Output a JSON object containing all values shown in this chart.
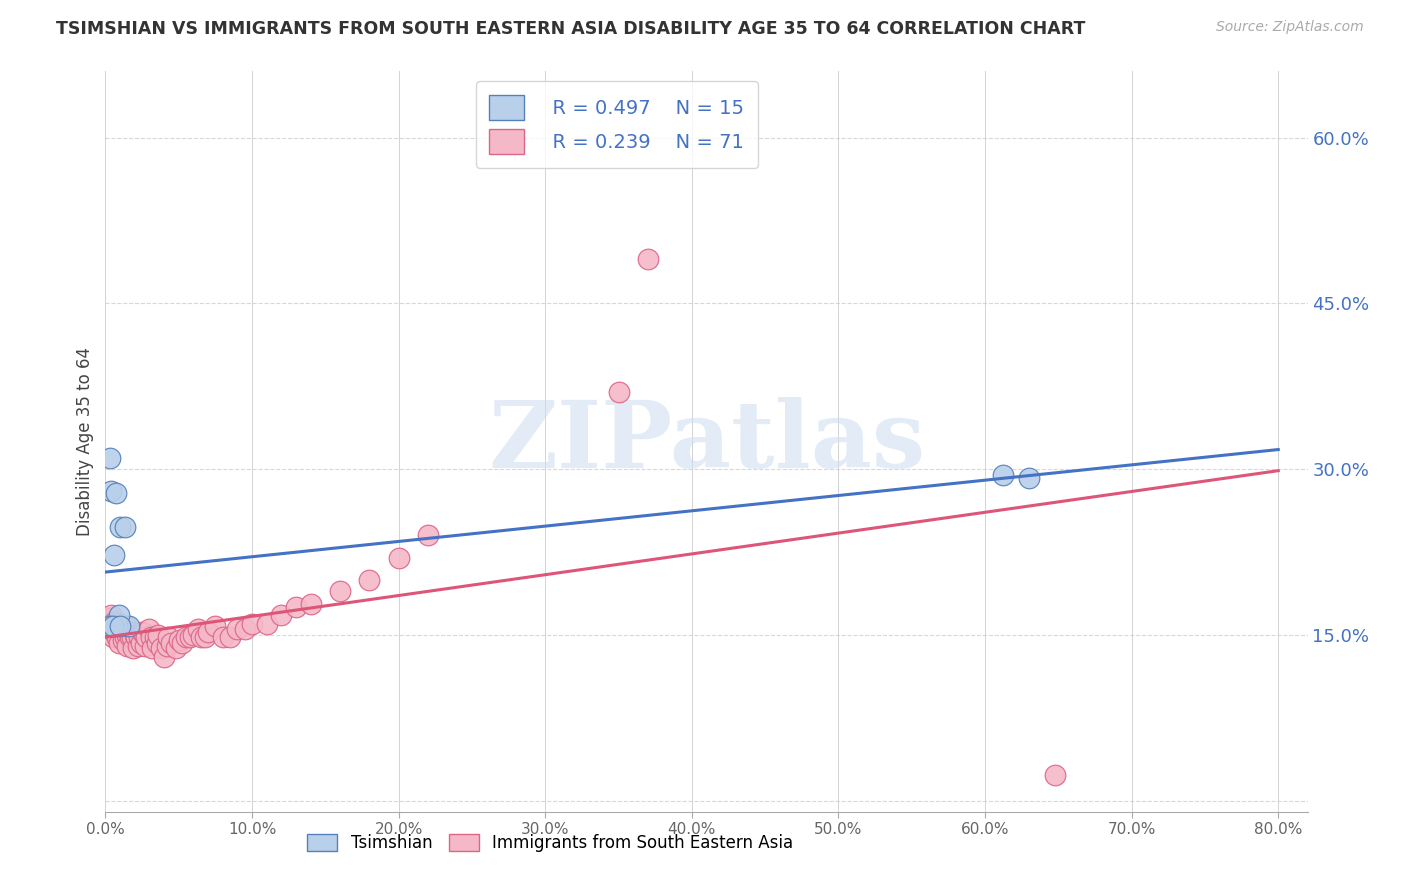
{
  "title": "TSIMSHIAN VS IMMIGRANTS FROM SOUTH EASTERN ASIA DISABILITY AGE 35 TO 64 CORRELATION CHART",
  "source": "Source: ZipAtlas.com",
  "ylabel": "Disability Age 35 to 64",
  "xlim": [
    0.0,
    0.82
  ],
  "ylim": [
    -0.01,
    0.66
  ],
  "right_yticks": [
    0.15,
    0.3,
    0.45,
    0.6
  ],
  "right_yticklabels": [
    "15.0%",
    "30.0%",
    "45.0%",
    "60.0%"
  ],
  "xticks": [
    0.0,
    0.1,
    0.2,
    0.3,
    0.4,
    0.5,
    0.6,
    0.7,
    0.8
  ],
  "xticklabels": [
    "0.0%",
    "10.0%",
    "20.0%",
    "30.0%",
    "40.0%",
    "50.0%",
    "60.0%",
    "70.0%",
    "80.0%"
  ],
  "tsimshian_color": "#b8d0ea",
  "tsimshian_edge_color": "#5580bb",
  "immigrants_color": "#f5b8c8",
  "immigrants_edge_color": "#dd6688",
  "blue_line_color": "#4472c4",
  "pink_line_color": "#dd5577",
  "legend_R_tsimshian": "R = 0.497",
  "legend_N_tsimshian": "N = 15",
  "legend_R_immigrants": "R = 0.239",
  "legend_N_immigrants": "N = 71",
  "watermark_text": "ZIPatlas",
  "background_color": "#ffffff",
  "grid_color": "#d8d8d8",
  "tsimshian_x": [
    0.003,
    0.004,
    0.007,
    0.01,
    0.013,
    0.016,
    0.005,
    0.008,
    0.006,
    0.612,
    0.63,
    0.009,
    0.003,
    0.005,
    0.01
  ],
  "tsimshian_y": [
    0.31,
    0.28,
    0.278,
    0.248,
    0.248,
    0.158,
    0.158,
    0.158,
    0.222,
    0.295,
    0.292,
    0.168,
    0.158,
    0.158,
    0.158
  ],
  "immigrants_x": [
    0.003,
    0.004,
    0.004,
    0.005,
    0.005,
    0.006,
    0.007,
    0.008,
    0.008,
    0.009,
    0.009,
    0.01,
    0.01,
    0.011,
    0.012,
    0.012,
    0.013,
    0.014,
    0.015,
    0.015,
    0.016,
    0.017,
    0.018,
    0.019,
    0.02,
    0.021,
    0.022,
    0.023,
    0.024,
    0.025,
    0.026,
    0.027,
    0.028,
    0.03,
    0.031,
    0.032,
    0.034,
    0.035,
    0.036,
    0.038,
    0.04,
    0.042,
    0.043,
    0.045,
    0.048,
    0.05,
    0.052,
    0.055,
    0.058,
    0.06,
    0.063,
    0.065,
    0.068,
    0.07,
    0.075,
    0.08,
    0.085,
    0.09,
    0.095,
    0.1,
    0.11,
    0.12,
    0.13,
    0.14,
    0.16,
    0.18,
    0.2,
    0.22,
    0.35,
    0.37,
    0.648
  ],
  "immigrants_y": [
    0.165,
    0.168,
    0.155,
    0.158,
    0.148,
    0.162,
    0.15,
    0.162,
    0.148,
    0.153,
    0.143,
    0.155,
    0.16,
    0.155,
    0.15,
    0.145,
    0.148,
    0.158,
    0.15,
    0.14,
    0.153,
    0.148,
    0.148,
    0.138,
    0.15,
    0.148,
    0.14,
    0.148,
    0.143,
    0.153,
    0.152,
    0.14,
    0.148,
    0.155,
    0.148,
    0.138,
    0.148,
    0.143,
    0.15,
    0.138,
    0.13,
    0.14,
    0.148,
    0.143,
    0.138,
    0.145,
    0.143,
    0.148,
    0.148,
    0.15,
    0.155,
    0.148,
    0.148,
    0.153,
    0.158,
    0.148,
    0.148,
    0.155,
    0.155,
    0.16,
    0.16,
    0.168,
    0.175,
    0.178,
    0.19,
    0.2,
    0.22,
    0.24,
    0.37,
    0.49,
    0.023
  ]
}
